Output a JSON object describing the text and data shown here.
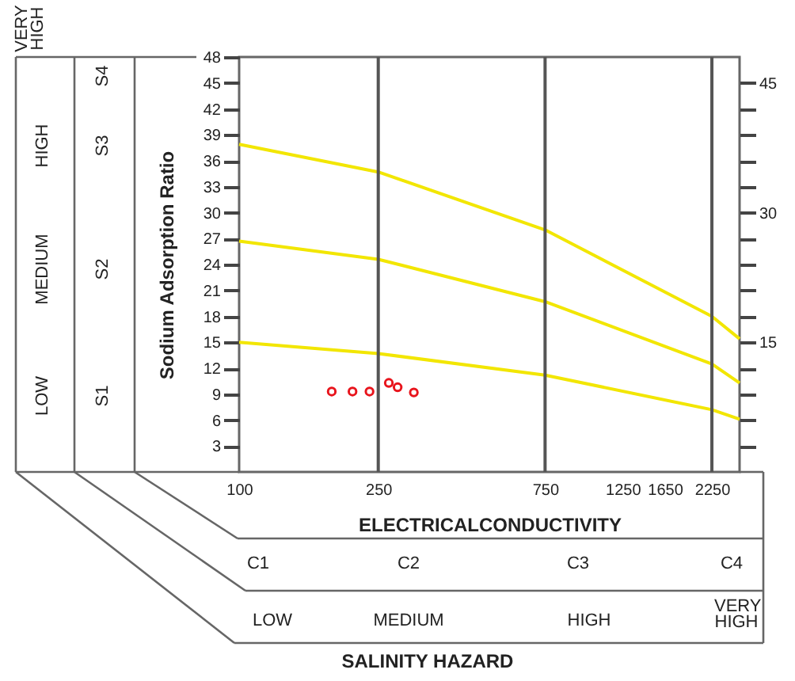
{
  "chart_data": {
    "type": "scatter",
    "xlabel": "ELECTRICALCONDUCTIVITY",
    "ylabel": "Sodium Adsorption Ratio",
    "xlim": [
      100,
      2700
    ],
    "log": "x",
    "xticks": [
      100,
      250,
      750,
      1250,
      1650,
      2250
    ],
    "ylim": [
      0,
      48
    ],
    "yticks": [
      3,
      6,
      9,
      12,
      15,
      18,
      21,
      24,
      27,
      30,
      33,
      36,
      39,
      42,
      45,
      48
    ],
    "y2lim": [
      0,
      48
    ],
    "y2ticks": [
      {
        "value": 3,
        "label": null
      },
      {
        "value": 6,
        "label": null
      },
      {
        "value": 9,
        "label": null
      },
      {
        "value": 12,
        "label": null
      },
      15,
      {
        "value": 18,
        "label": null
      },
      {
        "value": 21,
        "label": null
      },
      {
        "value": 24,
        "label": null
      },
      {
        "value": 27,
        "label": null
      },
      30,
      {
        "value": 33,
        "label": null
      },
      {
        "value": 36,
        "label": null
      },
      {
        "value": 39,
        "label": null
      },
      {
        "value": 42,
        "label": null
      },
      45
    ],
    "grid": false,
    "legend": false,
    "ref_lines": [
      {
        "axis": "x",
        "value": 250,
        "label": null,
        "color": "#555555"
      },
      {
        "axis": "x",
        "value": 750,
        "label": null,
        "color": "#555555"
      },
      {
        "axis": "x",
        "value": 2250,
        "label": null,
        "color": "#555555"
      }
    ],
    "series": [
      {
        "type": "line",
        "color": "#f2e600",
        "x": [
          100,
          250,
          750,
          2250,
          2700
        ],
        "values": [
          37.9,
          34.7,
          28,
          18,
          15.4
        ]
      },
      {
        "type": "line",
        "color": "#f2e600",
        "x": [
          100,
          250,
          750,
          2250,
          2700
        ],
        "values": [
          26.7,
          24.6,
          19.7,
          12.5,
          10.3
        ]
      },
      {
        "type": "line",
        "color": "#f2e600",
        "x": [
          100,
          250,
          750,
          2250,
          2700
        ],
        "values": [
          15,
          13.7,
          11.2,
          7.2,
          6.1
        ]
      },
      {
        "type": "scatter",
        "marker": "circle",
        "color": "#e8141c",
        "x": [
          184,
          211,
          236,
          268,
          284,
          316
        ],
        "values": [
          9.3,
          9.3,
          9.3,
          10.3,
          9.8,
          9.2
        ]
      }
    ],
    "annotations": [
      "VERY HIGH",
      "HIGH",
      "MEDIUM",
      "LOW",
      "S4",
      "S3",
      "S2",
      "S1",
      "C1",
      "C2",
      "C3",
      "C4",
      "LOW",
      "MEDIUM",
      "HIGH",
      "VERY HIGH",
      "SALINITY HAZARD"
    ]
  }
}
